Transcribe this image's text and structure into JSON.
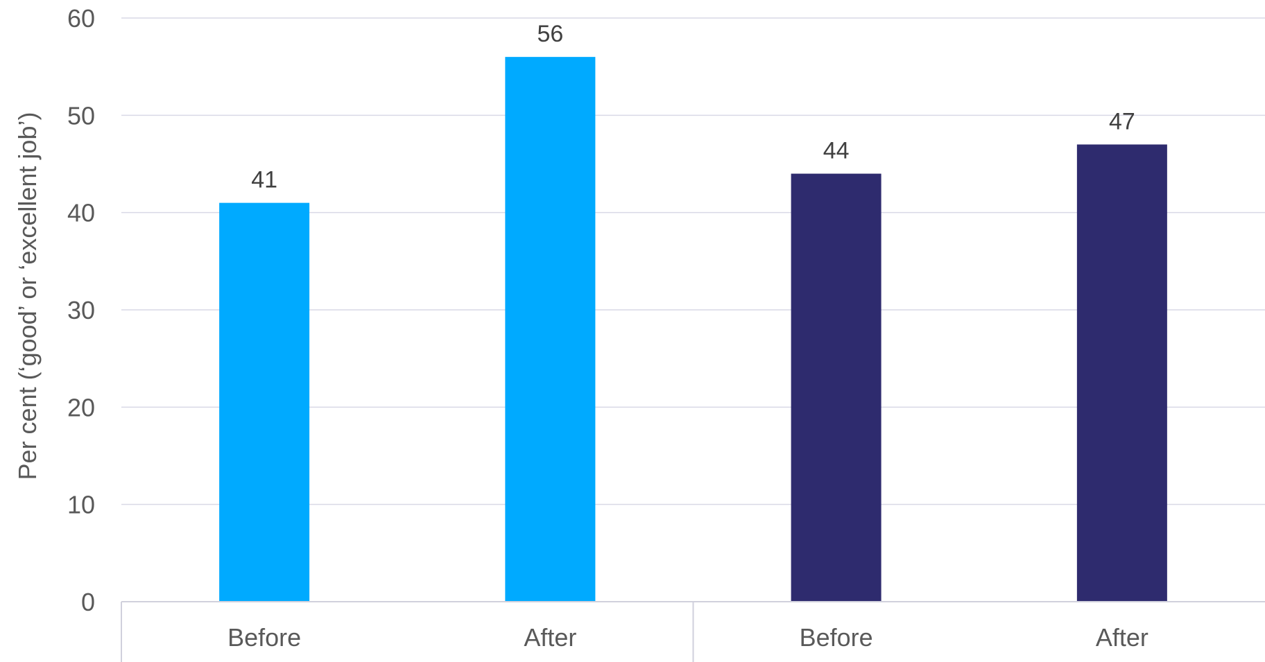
{
  "chart_data": {
    "type": "bar",
    "title": "",
    "xlabel": "",
    "ylabel": "Per cent (‘good’ or ‘excellent job’)",
    "ylim": [
      0,
      60
    ],
    "yticks": [
      0,
      10,
      20,
      30,
      40,
      50,
      60
    ],
    "grid": true,
    "legend": "none",
    "categories": [
      "Before",
      "After",
      "Before",
      "After"
    ],
    "values": [
      41,
      56,
      44,
      47
    ],
    "data_labels": [
      "41",
      "56",
      "44",
      "47"
    ],
    "colors": [
      "#00aaff",
      "#00aaff",
      "#2e2b6e",
      "#2e2b6e"
    ],
    "groups": [
      {
        "name": "",
        "categories": [
          0,
          1
        ]
      },
      {
        "name": "",
        "categories": [
          2,
          3
        ]
      }
    ]
  }
}
